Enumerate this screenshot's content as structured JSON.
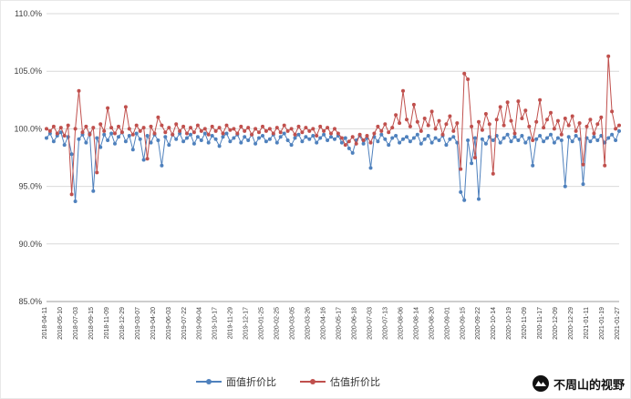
{
  "watermark": {
    "text": "不周山的视野"
  },
  "chart_data": {
    "type": "line",
    "title": "",
    "xlabel": "",
    "ylabel": "",
    "ylim": [
      85,
      110
    ],
    "grid": "horizontal",
    "legend_position": "bottom-center",
    "y_ticks": [
      85,
      90,
      95,
      100,
      105,
      110
    ],
    "y_tick_labels": [
      "85.0%",
      "90.0%",
      "95.0%",
      "100.0%",
      "105.0%",
      "110.0%"
    ],
    "x_tick_labels": [
      "2018-04-11",
      "2018-05-10",
      "2018-07-03",
      "2018-09-15",
      "2018-11-09",
      "2018-12-29",
      "2019-03-07",
      "2019-04-20",
      "2019-06-03",
      "2019-07-22",
      "2019-09-04",
      "2019-10-17",
      "2019-11-29",
      "2019-12-17",
      "2020-01-25",
      "2020-02-25",
      "2020-03-05",
      "2020-03-26",
      "2020-04-16",
      "2020-05-17",
      "2020-06-18",
      "2020-07-03",
      "2020-07-13",
      "2020-08-06",
      "2020-08-14",
      "2020-08-20",
      "2020-09-01",
      "2020-09-15",
      "2020-09-22",
      "2020-10-14",
      "2020-10-19",
      "2020-11-09",
      "2020-11-17",
      "2020-12-09",
      "2020-12-29",
      "2021-01-11",
      "2021-01-19",
      "2021-01-27"
    ],
    "series": [
      {
        "name": "面值折价比",
        "color": "#4F81BD",
        "values": [
          99.2,
          99.6,
          98.9,
          99.4,
          99.7,
          98.6,
          99.3,
          97.8,
          93.7,
          99.1,
          99.5,
          98.8,
          99.6,
          94.6,
          99.2,
          98.4,
          99.5,
          99.0,
          99.6,
          98.7,
          99.3,
          99.7,
          98.9,
          99.4,
          98.2,
          99.6,
          99.1,
          97.3,
          99.4,
          98.8,
          99.5,
          99.0,
          96.8,
          99.3,
          98.6,
          99.5,
          99.1,
          99.6,
          98.9,
          99.2,
          99.5,
          98.7,
          99.3,
          99.0,
          99.6,
          98.8,
          99.4,
          99.1,
          98.5,
          99.3,
          99.6,
          98.9,
          99.2,
          99.5,
          98.8,
          99.3,
          99.0,
          99.5,
          98.7,
          99.2,
          99.4,
          98.9,
          99.1,
          99.5,
          98.8,
          99.3,
          99.6,
          99.0,
          98.6,
          99.2,
          99.5,
          98.9,
          99.3,
          99.1,
          99.4,
          98.8,
          99.2,
          99.5,
          99.0,
          99.3,
          99.1,
          99.4,
          98.8,
          99.2,
          98.3,
          97.9,
          99.0,
          99.4,
          98.7,
          99.2,
          96.6,
          99.3,
          98.9,
          99.5,
          99.1,
          98.6,
          99.2,
          99.4,
          98.8,
          99.1,
          99.3,
          98.9,
          99.2,
          99.5,
          98.7,
          99.1,
          99.4,
          98.8,
          99.2,
          99.0,
          99.4,
          98.6,
          99.1,
          99.3,
          98.8,
          94.5,
          93.8,
          99.0,
          97.0,
          99.2,
          93.9,
          99.1,
          98.7,
          99.3,
          99.0,
          99.4,
          98.8,
          99.2,
          99.5,
          98.9,
          99.3,
          99.0,
          99.4,
          98.8,
          99.2,
          96.8,
          99.1,
          99.4,
          98.9,
          99.2,
          99.5,
          98.8,
          99.2,
          99.0,
          95.0,
          99.3,
          98.9,
          99.4,
          99.1,
          95.2,
          99.2,
          98.9,
          99.3,
          99.0,
          99.4,
          98.8,
          99.2,
          99.5,
          99.0,
          99.8
        ]
      },
      {
        "name": "估值折价比",
        "color": "#C0504D",
        "values": [
          100.0,
          99.8,
          100.2,
          99.6,
          100.1,
          99.4,
          100.3,
          94.3,
          100.0,
          103.3,
          99.7,
          100.2,
          99.5,
          100.1,
          96.2,
          100.4,
          99.8,
          101.8,
          100.1,
          99.6,
          100.2,
          99.7,
          101.9,
          100.0,
          99.5,
          100.3,
          99.8,
          100.1,
          97.4,
          100.2,
          99.6,
          101.0,
          100.3,
          99.7,
          100.1,
          99.5,
          100.4,
          99.8,
          100.2,
          99.6,
          100.1,
          99.7,
          100.3,
          99.8,
          100.0,
          99.5,
          100.2,
          99.8,
          100.1,
          99.6,
          100.3,
          99.9,
          100.0,
          99.6,
          100.2,
          99.8,
          100.1,
          99.5,
          100.0,
          99.7,
          100.2,
          99.8,
          100.0,
          99.6,
          100.1,
          99.7,
          100.3,
          99.8,
          100.0,
          99.5,
          100.2,
          99.7,
          100.1,
          99.8,
          100.0,
          99.4,
          100.2,
          99.8,
          100.1,
          99.6,
          100.0,
          99.6,
          99.2,
          98.6,
          98.9,
          99.3,
          98.7,
          99.5,
          99.0,
          99.4,
          98.8,
          99.6,
          100.2,
          99.8,
          100.4,
          99.7,
          100.1,
          101.2,
          100.5,
          103.3,
          100.8,
          100.2,
          102.1,
          100.6,
          99.8,
          100.9,
          100.3,
          101.5,
          100.0,
          100.7,
          99.5,
          100.4,
          101.1,
          99.8,
          100.5,
          96.5,
          104.8,
          104.3,
          100.2,
          97.5,
          100.6,
          99.9,
          101.3,
          100.4,
          96.1,
          100.8,
          101.9,
          100.3,
          102.3,
          100.7,
          99.6,
          102.4,
          100.9,
          101.6,
          100.2,
          99.0,
          100.6,
          102.5,
          100.1,
          100.8,
          101.4,
          100.0,
          100.7,
          99.5,
          100.9,
          100.3,
          101.1,
          99.8,
          100.5,
          96.9,
          100.2,
          100.8,
          99.6,
          100.4,
          101.0,
          96.8,
          106.3,
          101.5,
          100.0,
          100.3
        ]
      }
    ]
  }
}
